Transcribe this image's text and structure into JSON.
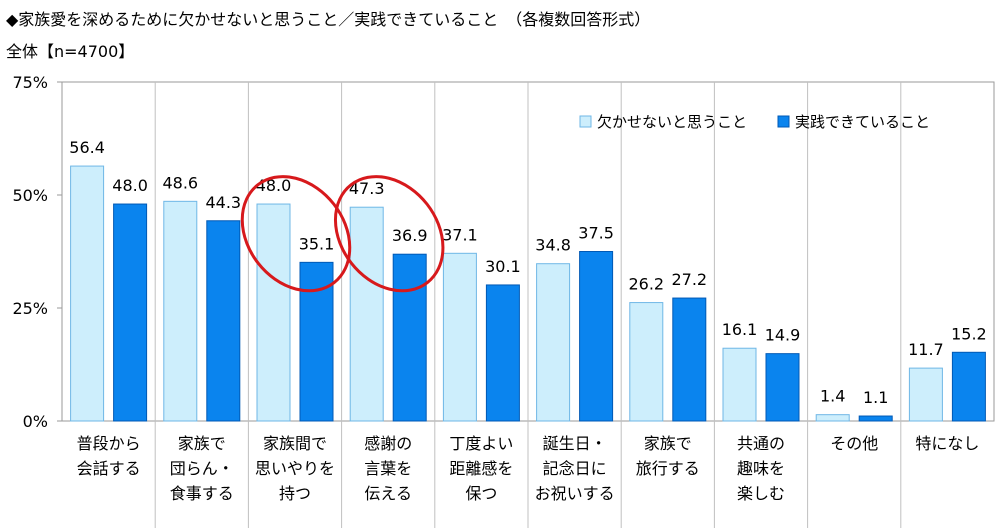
{
  "header": {
    "title": "◆家族愛を深めるために欠かせないと思うこと／実践できていること　（各複数回答形式）",
    "subtitle": "全体【n=4700】"
  },
  "chart_data": {
    "type": "bar",
    "ylim": [
      0,
      75
    ],
    "yticks": [
      "0%",
      "25%",
      "50%",
      "75%"
    ],
    "ytick_values": [
      0,
      25,
      50,
      75
    ],
    "grid": false,
    "legend_position": "top-right",
    "categories": [
      [
        "普段から",
        "会話する"
      ],
      [
        "家族で",
        "団らん・",
        "食事する"
      ],
      [
        "家族間で",
        "思いやりを",
        "持つ"
      ],
      [
        "感謝の",
        "言葉を",
        "伝える"
      ],
      [
        "丁度よい",
        "距離感を",
        "保つ"
      ],
      [
        "誕生日・",
        "記念日に",
        "お祝いする"
      ],
      [
        "家族で",
        "旅行する"
      ],
      [
        "共通の",
        "趣味を",
        "楽しむ"
      ],
      [
        "その他"
      ],
      [
        "特になし"
      ]
    ],
    "series": [
      {
        "name": "欠かせないと思うこと",
        "color": "#cdeefc",
        "stroke": "#6fb7e6",
        "values": [
          56.4,
          48.6,
          48.0,
          47.3,
          37.1,
          34.8,
          26.2,
          16.1,
          1.4,
          11.7
        ],
        "labels": [
          "56.4",
          "48.6",
          "48.0",
          "47.3",
          "37.1",
          "34.8",
          "26.2",
          "16.1",
          "1.4",
          "11.7"
        ]
      },
      {
        "name": "実践できていること",
        "color": "#0a84ee",
        "stroke": "#0059b5",
        "values": [
          48.0,
          44.3,
          35.1,
          36.9,
          30.1,
          37.5,
          27.2,
          14.9,
          1.1,
          15.2
        ],
        "labels": [
          "48.0",
          "44.3",
          "35.1",
          "36.9",
          "30.1",
          "37.5",
          "27.2",
          "14.9",
          "1.1",
          "15.2"
        ]
      }
    ],
    "highlighted_categories": [
      2,
      3
    ],
    "highlight_color": "#d7191c"
  }
}
